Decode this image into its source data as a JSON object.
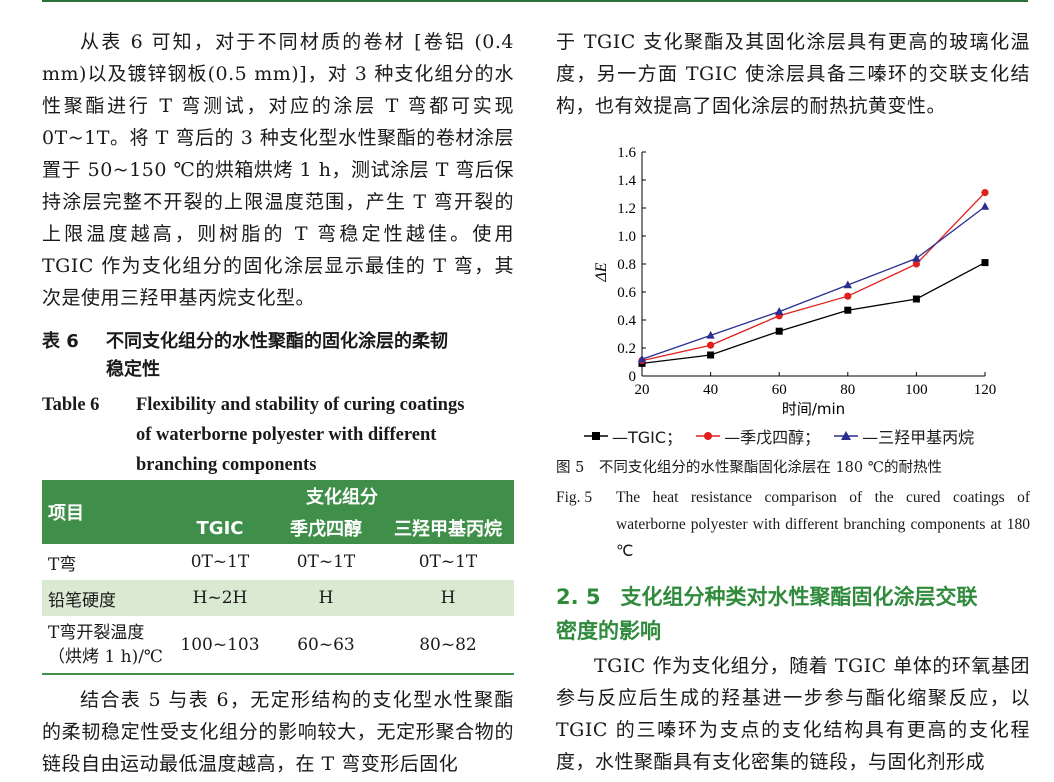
{
  "left_top_para": "从表 6 可知，对于不同材质的卷材 [卷铝 (0.4 mm)以及镀锌钢板(0.5 mm)]，对 3 种支化组分的水性聚酯进行 T 弯测试，对应的涂层 T 弯都可实现 0T~1T。将 T 弯后的 3 种支化型水性聚酯的卷材涂层置于 50~150 ℃的烘箱烘烤 1 h，测试涂层 T 弯后保持涂层完整不开裂的上限温度范围，产生 T 弯开裂的上限温度越高，则树脂的 T 弯稳定性越佳。使用 TGIC 作为支化组分的固化涂层显示最佳的 T 弯，其次是使用三羟甲基丙烷支化型。",
  "table6": {
    "cn_label": "表 6",
    "cn_title_1": "不同支化组分的水性聚酯的固化涂层的柔韧",
    "cn_title_2": "稳定性",
    "en_label": "Table 6",
    "en_title_1": "Flexibility and stability of curing coatings",
    "en_title_2": "of waterborne polyester with different",
    "en_title_3": "branching components",
    "header_item": "项目",
    "header_group": "支化组分",
    "columns": [
      "TGIC",
      "季戊四醇",
      "三羟甲基丙烷"
    ],
    "rows": [
      {
        "label": "T弯",
        "values": [
          "0T~1T",
          "0T~1T",
          "0T~1T"
        ]
      },
      {
        "label": "铅笔硬度",
        "values": [
          "H~2H",
          "H",
          "H"
        ]
      },
      {
        "label": "T弯开裂温度",
        "label2": "（烘烤 1 h)/℃",
        "values": [
          "100~103",
          "60~63",
          "80~82"
        ]
      }
    ]
  },
  "left_bottom_para": "结合表 5 与表 6，无定形结构的支化型水性聚酯的柔韧稳定性受支化组分的影响较大，无定形聚合物的链段自由运动最低温度越高，在 T 弯变形后固化",
  "right_top_para": "于 TGIC 支化聚酯及其固化涂层具有更高的玻璃化温度，另一方面 TGIC 使涂层具备三嗪环的交联支化结构，也有效提高了固化涂层的耐热抗黄变性。",
  "chart_data": {
    "type": "line",
    "xlabel": "时间/min",
    "ylabel": "ΔE",
    "x": [
      20,
      40,
      60,
      80,
      100,
      120
    ],
    "xlim": [
      20,
      120
    ],
    "ylim": [
      0,
      1.6
    ],
    "xticks": [
      "20",
      "40",
      "60",
      "80",
      "100",
      "120"
    ],
    "yticks": [
      "0",
      "0.2",
      "0.4",
      "0.6",
      "0.8",
      "1.0",
      "1.2",
      "1.4",
      "1.6"
    ],
    "series": [
      {
        "name": "TGIC",
        "values": [
          0.09,
          0.15,
          0.32,
          0.47,
          0.55,
          0.81
        ],
        "color": "#000000",
        "marker": "square"
      },
      {
        "name": "季戊四醇",
        "values": [
          0.11,
          0.22,
          0.43,
          0.57,
          0.8,
          1.31
        ],
        "color": "#e0201c",
        "marker": "circle"
      },
      {
        "name": "三羟甲基丙烷",
        "values": [
          0.12,
          0.29,
          0.46,
          0.65,
          0.84,
          1.21
        ],
        "color": "#2a2f8f",
        "marker": "triangle"
      }
    ],
    "legend": [
      "—TGIC；",
      "—季戊四醇；",
      "—三羟甲基丙烷"
    ]
  },
  "figure5": {
    "cn": "图 5　不同支化组分的水性聚酯固化涂层在 180 ℃的耐热性",
    "en_label": "Fig. 5",
    "en_text": "The heat resistance comparison of the cured coatings of waterborne polyester with different branching components at 180 ℃"
  },
  "section": {
    "number": "2. 5",
    "title_1": "支化组分种类对水性聚酯固化涂层交联",
    "title_2": "密度的影响"
  },
  "right_bottom_para": "TGIC 作为支化组分，随着 TGIC 单体的环氧基团参与反应后生成的羟基进一步参与酯化缩聚反应，以 TGIC 的三嗪环为支点的支化结构具有更高的支化程度，水性聚酯具有支化密集的链段，与固化剂形成"
}
